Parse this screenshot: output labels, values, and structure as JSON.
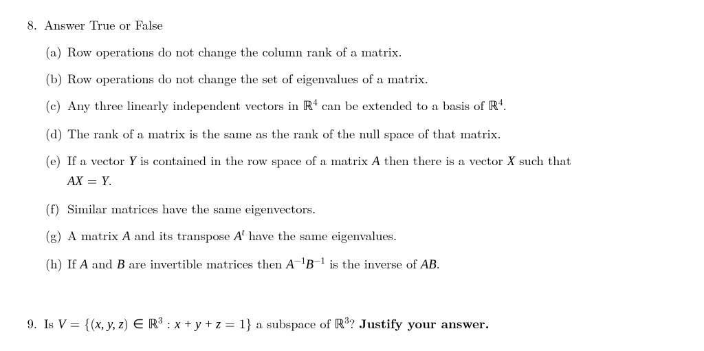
{
  "problem8": {
    "number": "8.",
    "title": "Answer True or False",
    "items": {
      "a": {
        "label": "(a)",
        "text": "Row operations do not change the column rank of a matrix."
      },
      "b": {
        "label": "(b)",
        "text": "Row operations do not change the set of eigenvalues of a matrix."
      },
      "c": {
        "label": "(c)",
        "pre": "Any three linearly independent vectors in ",
        "R4a": "ℝ",
        "sup4a": "4",
        "mid": " can be extended to a basis of ",
        "R4b": "ℝ",
        "sup4b": "4",
        "post": "."
      },
      "d": {
        "label": "(d)",
        "text": "The rank of a matrix is the same as the rank of the null space of that matrix."
      },
      "e": {
        "label": "(e)",
        "line1_pre": "If a vector ",
        "Y1": "Y",
        "line1_mid": " is contained in the row space of a matrix ",
        "A1": "A",
        "line1_mid2": " then there is a vector ",
        "X1": "X",
        "line1_post": " such that",
        "line2_AX": "AX",
        "line2_eq": " = ",
        "line2_Y": "Y",
        "line2_post": "."
      },
      "f": {
        "label": "(f)",
        "text": "Similar matrices have the same eigenvectors."
      },
      "g": {
        "label": "(g)",
        "pre": "A matrix ",
        "A": "A",
        "mid": " and its transpose ",
        "At": "A",
        "supt": "t",
        "post": " have the same eigenvalues."
      },
      "h": {
        "label": "(h)",
        "pre": "If ",
        "A": "A",
        "and": " and ",
        "B": "B",
        "mid": " are invertible matrices then ",
        "Ainv": "A",
        "neg1a": "−1",
        "Binv": "B",
        "neg1b": "−1",
        "mid2": " is the inverse of ",
        "AB": "AB",
        "post": "."
      }
    }
  },
  "problem9": {
    "number": "9.",
    "pre": "Is ",
    "V": "V",
    "eq": " = {(",
    "xyz": "x, y, z",
    "in": ") ∈ ",
    "R3": "ℝ",
    "sup3": "3",
    "colon": " : ",
    "expr": "x + y + z",
    "eq1": " = 1} a subspace of ",
    "R3b": "ℝ",
    "sup3b": "3",
    "q": "? ",
    "bold": "Justify your answer."
  },
  "style": {
    "text_color": "#000000",
    "background_color": "#ffffff",
    "font_size_pt": 14,
    "font_family": "serif"
  }
}
